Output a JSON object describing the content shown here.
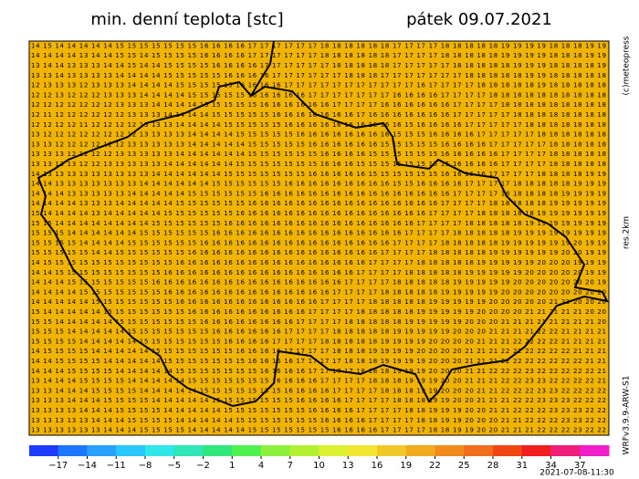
{
  "header": {
    "title": "min. denní teplota [stc]",
    "date": "pátek 09.07.2021"
  },
  "side_labels": {
    "copyright": "(c)meteopress",
    "resolution": "res.2km",
    "model": "WRFv3.9.9-ARW-S1"
  },
  "timestamp": "2021-07-08-11:30",
  "map": {
    "background": "#f0b400",
    "rows": [
      "14 15 14 14 14 14 14 15 15 15 15 15 15 15 16 16 16 16 17 17 17 17 17 17 18 18 18 18 18 18 17 17 17 17 18 18 18 18 18 19 19 19 19 18 18 18 19 19",
      "14 14 14 14 13 14 14 15 15 14 15 15 15 15 16 16 16 16 17 17 17 17 17 17 18 18 18 18 18 18 17 17 17 17 18 18 18 18 18 19 19 19 19 18 18 18 19 19",
      "13 14 14 13 13 13 14 14 15 14 14 15 15 15 15 16 16 16 16 17 17 17 17 17 17 18 18 18 18 18 17 17 17 17 17 18 18 18 18 18 19 19 19 18 18 18 18 19",
      "13 13 14 13 13 13 13 14 14 14 14 15 15 15 15 15 16 16 16 16 17 17 17 17 17 17 18 18 18 17 17 17 17 17 17 17 18 18 18 18 18 19 19 18 18 18 18 18",
      "12 13 13 13 12 13 13 13 14 14 14 14 15 15 15 15 15 16 16 16 16 17 17 17 17 17 17 17 17 17 17 17 16 17 17 17 17 18 18 18 18 18 19 18 18 18 18 18",
      "12 12 13 12 12 12 13 13 13 14 14 14 14 15 15 15 15 15 16 16 16 16 16 17 17 17 17 17 17 17 16 16 16 16 17 17 17 17 18 18 18 18 18 18 18 18 18 18",
      "12 12 12 12 12 12 12 13 13 13 14 14 14 14 15 15 15 15 15 16 16 16 16 16 16 17 17 17 17 16 16 16 16 16 16 17 17 17 17 18 18 18 18 18 18 18 18 18",
      "12 11 12 12 12 12 12 12 13 13 13 14 14 14 14 15 15 15 15 15 16 16 16 16 16 16 16 17 16 16 16 16 16 16 16 17 17 17 17 17 18 18 18 18 18 18 18 18",
      "12 12 12 12 11 12 12 12 12 13 13 13 14 14 14 14 15 15 15 15 15 16 16 16 16 16 16 16 16 16 16 15 16 16 16 16 17 17 17 17 17 18 18 18 18 18 18 18",
      "13 12 12 12 12 12 12 12 12 13 13 13 13 14 14 14 14 15 15 15 15 15 16 16 16 16 16 16 16 16 15 15 15 16 16 16 16 17 17 17 17 17 18 18 18 18 18 18",
      "13 13 12 12 12 12 12 12 13 13 13 13 13 14 14 14 14 14 15 15 15 15 15 16 16 16 16 16 16 15 15 15 15 15 16 16 16 16 17 17 17 17 17 18 18 18 18 18",
      "13 13 13 12 12 12 12 13 13 13 13 13 14 14 14 14 14 14 15 15 15 15 15 15 16 16 16 16 15 15 15 15 15 15 16 16 16 16 16 17 17 17 17 18 18 18 18 18",
      "13 13 13 13 12 12 13 13 13 13 13 14 14 14 14 14 14 15 15 15 15 15 15 15 16 16 16 15 15 15 15 15 15 15 15 16 16 16 16 17 17 17 17 18 18 18 18 18",
      "14 13 13 13 13 13 13 13 13 13 14 14 14 14 14 14 15 15 15 15 15 15 15 16 16 16 16 16 15 15 15 15 15 15 16 16 16 16 17 17 17 17 18 18 18 18 19 19",
      "14 14 13 13 13 13 13 13 13 14 14 14 14 14 14 15 15 15 15 15 15 16 16 16 16 16 16 16 16 16 15 15 16 16 16 16 17 17 17 17 18 18 18 18 18 19 19 19",
      "14 14 14 13 13 13 13 13 14 14 14 14 14 15 15 15 15 15 15 16 16 16 16 16 16 16 16 16 16 16 16 16 16 16 16 17 17 17 17 18 18 18 18 18 19 19 19 19",
      "14 14 14 14 13 13 13 14 14 14 14 14 15 15 15 15 15 15 16 16 16 16 16 16 16 16 16 16 16 16 16 16 16 16 17 17 17 17 18 18 18 18 18 19 19 19 19 19",
      "15 14 14 14 14 13 14 14 14 14 14 15 15 15 15 15 15 16 16 16 16 16 16 16 16 16 16 16 16 16 16 16 16 17 17 17 17 18 18 18 18 18 19 19 19 19 19 19",
      "15 15 14 14 14 14 14 14 14 14 15 15 15 15 15 15 16 16 16 16 16 16 16 16 16 16 16 16 16 16 16 16 17 17 17 17 18 18 18 18 18 19 19 19 19 19 19 19",
      "15 15 15 14 14 14 14 14 14 15 15 15 15 15 15 16 16 16 16 16 16 16 16 16 16 16 16 16 16 16 16 17 17 17 17 18 18 18 18 18 19 19 19 19 19 19 19 19",
      "15 15 15 15 14 14 14 14 15 15 15 15 15 15 16 16 16 16 16 16 16 16 16 16 16 16 16 16 16 16 17 17 17 17 18 18 18 18 18 19 19 19 19 19 19 20 19 19",
      "15 15 15 15 15 14 14 15 15 15 15 15 15 16 16 16 16 16 16 16 16 16 16 16 16 16 16 16 16 17 17 17 17 18 18 18 18 18 19 19 19 19 19 19 20 20 19 19",
      "14 15 15 15 15 15 15 15 15 15 15 15 16 16 16 16 16 16 16 16 16 16 16 16 16 16 16 16 17 17 17 17 18 18 18 18 18 19 19 19 19 19 20 20 20 19 19 19",
      "14 14 15 15 15 15 15 15 15 15 15 16 16 16 16 16 16 16 16 16 16 16 16 16 16 16 16 17 17 17 17 18 18 18 18 18 19 19 19 19 19 20 20 20 20 20 19 19",
      "14 14 14 15 15 15 15 15 15 15 16 16 16 16 16 16 16 16 16 16 16 16 16 16 16 16 17 17 17 17 18 18 18 18 18 19 19 19 19 19 20 20 20 20 20 20 20 19",
      "14 14 14 14 15 15 15 15 15 15 15 16 16 16 16 16 16 16 16 16 16 16 16 16 16 17 17 17 17 18 18 18 18 18 19 19 19 19 19 20 20 20 20 20 20 20 20 20",
      "14 14 14 14 14 15 15 15 15 15 15 15 16 16 16 16 16 16 16 16 16 16 16 16 17 17 17 17 18 18 18 18 18 19 19 19 19 19 20 20 20 20 20 21 21 20 20 20",
      "15 14 14 14 14 14 15 15 15 15 15 15 15 16 16 16 16 16 16 16 16 16 16 17 17 17 17 18 18 18 18 18 19 19 19 19 19 20 20 20 20 21 21 21 21 21 20 20",
      "15 15 14 14 14 14 14 15 15 15 15 15 15 15 16 16 16 16 16 16 16 16 17 17 17 17 18 18 18 18 18 19 19 19 19 19 20 20 20 21 21 21 21 21 21 21 21 20",
      "15 15 15 14 14 14 14 14 15 15 15 15 15 15 15 16 16 16 16 16 16 17 17 17 17 18 18 18 18 18 19 19 19 19 19 20 20 20 21 21 21 21 22 22 21 21 21 21",
      "15 15 15 15 14 14 14 14 14 15 15 15 15 15 15 15 16 16 16 16 17 17 17 17 18 18 18 18 18 19 19 19 19 20 20 20 20 21 21 21 22 22 22 22 21 21 21 21",
      "14 15 15 15 15 14 14 14 14 14 15 15 15 15 15 15 15 16 16 16 16 17 17 17 17 18 18 18 19 19 19 19 20 20 20 20 21 21 21 22 22 22 22 22 22 21 21 21",
      "14 14 15 15 15 15 14 14 14 14 14 15 15 15 15 15 15 15 16 16 16 16 17 17 17 17 18 18 18 19 19 19 19 20 20 20 21 21 21 22 22 22 22 22 22 22 21 21",
      "14 14 14 15 15 15 15 14 14 14 14 14 15 15 15 15 15 15 15 16 16 16 16 17 17 17 17 18 18 18 19 19 19 20 20 20 21 21 22 22 22 23 22 22 22 22 22 21",
      "13 14 14 14 15 15 15 15 14 14 14 14 14 15 15 15 15 15 15 15 16 16 16 16 17 17 17 17 18 18 18 19 19 19 20 20 21 21 21 22 22 23 23 22 22 22 22 21",
      "13 13 14 14 14 15 15 15 15 14 14 14 14 14 15 15 15 15 15 15 15 16 16 16 16 17 17 17 17 18 18 18 19 19 20 20 20 21 21 22 22 22 23 23 22 22 22 22",
      "13 13 13 14 14 14 15 15 15 15 14 14 14 14 14 15 15 15 15 15 15 15 16 16 16 16 17 17 17 17 18 18 18 19 19 20 20 21 21 21 22 22 23 23 23 22 22 22",
      "13 13 13 13 14 14 14 15 15 15 15 14 14 14 14 14 15 15 15 15 15 15 15 16 16 16 16 17 17 17 17 18 18 19 19 19 20 20 21 21 22 22 22 23 23 23 22 22",
      "13 13 13 13 13 14 14 14 15 15 15 15 14 14 14 14 14 15 15 15 15 15 15 15 16 16 16 16 17 17 17 17 18 18 19 19 20 20 20 21 21 22 22 22 23 23 22 22",
      "13 13 13 13 13 13 14 14 14 15 15 15 15 14 14 14 14 14 15 15 15 15 15 15 15 16 16 16 16 17 17 17 17 18 18 19 19 20 20 21 21 21 22 22 22 23 22 22"
    ]
  },
  "colorbar": {
    "range": [
      -20,
      40
    ],
    "colors": [
      "#1e3cff",
      "#1e78ff",
      "#28a0ff",
      "#28c8ff",
      "#30e6e6",
      "#30e6b4",
      "#30e67d",
      "#50f050",
      "#8cf03c",
      "#b4f032",
      "#dcf032",
      "#f0e632",
      "#f0c828",
      "#f0aa1e",
      "#f08c1e",
      "#f06e1e",
      "#f04614",
      "#f01e1e",
      "#f01e78",
      "#f01ec8"
    ],
    "ticks": [
      {
        "value": -17,
        "label": "−17"
      },
      {
        "value": -14,
        "label": "−14"
      },
      {
        "value": -11,
        "label": "−11"
      },
      {
        "value": -8,
        "label": "−8"
      },
      {
        "value": -5,
        "label": "−5"
      },
      {
        "value": -2,
        "label": "−2"
      },
      1,
      4,
      7,
      10,
      13,
      16,
      19,
      22,
      25,
      28,
      31,
      34,
      37
    ]
  }
}
